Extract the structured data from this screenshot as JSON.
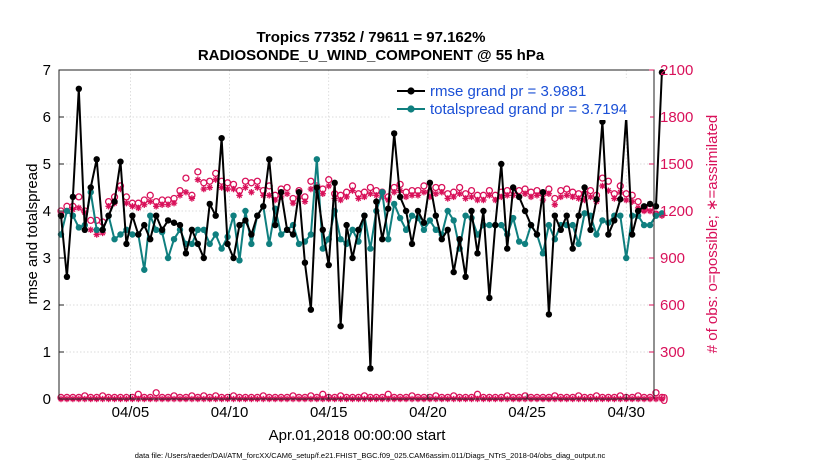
{
  "chart_data": {
    "type": "line",
    "title": "Tropics 77352 / 79611 = 97.162%",
    "subtitle": "RADIOSONDE_U_WIND_COMPONENT @ 55 hPa",
    "xlabel": "Apr.01,2018 00:00:00 start",
    "ylabel": "rmse and totalspread",
    "y2label": "# of obs: o=possible; ∗=assimilated",
    "ylim": [
      0,
      7
    ],
    "y2lim": [
      0,
      2100
    ],
    "xlim": [
      0.9,
      30.9
    ],
    "yticks": [
      "0",
      "1",
      "2",
      "3",
      "4",
      "5",
      "6",
      "7"
    ],
    "y2ticks": [
      "0",
      "300",
      "600",
      "900",
      "1200",
      "1500",
      "1800",
      "2100"
    ],
    "xticks": [
      {
        "x": 4.5,
        "label": "04/05"
      },
      {
        "x": 9.5,
        "label": "04/10"
      },
      {
        "x": 14.5,
        "label": "04/15"
      },
      {
        "x": 19.5,
        "label": "04/20"
      },
      {
        "x": 24.5,
        "label": "04/25"
      },
      {
        "x": 29.5,
        "label": "04/30"
      }
    ],
    "colors": {
      "rmse": "#000000",
      "spread": "#0f7f7f",
      "obs": "#d9115a",
      "legend_text": "#1a4fd6"
    },
    "legend": [
      "rmse grand pr = 3.9881",
      "totalspread grand pr = 3.7194"
    ],
    "series": [
      {
        "name": "rmse",
        "values": [
          3.9,
          2.6,
          4.3,
          6.6,
          3.6,
          4.5,
          5.1,
          3.6,
          3.9,
          4.2,
          5.05,
          3.3,
          3.9,
          3.5,
          3.7,
          3.4,
          3.9,
          3.6,
          3.8,
          3.75,
          3.7,
          3.1,
          3.6,
          3.3,
          3.0,
          4.15,
          3.9,
          5.55,
          3.3,
          3.0,
          3.7,
          3.8,
          3.5,
          3.9,
          4.1,
          5.1,
          3.7,
          4.4,
          3.6,
          3.5,
          4.4,
          2.9,
          1.9,
          4.5,
          3.6,
          2.85,
          4.6,
          1.55,
          3.7,
          3.0,
          3.6,
          3.9,
          0.65,
          4.2,
          3.4,
          4.05,
          5.65,
          4.3,
          4.0,
          3.3,
          4.0,
          3.75,
          4.6,
          3.9,
          3.4,
          3.6,
          2.7,
          3.4,
          2.6,
          4.0,
          3.1,
          4.0,
          2.15,
          3.7,
          5.0,
          3.2,
          4.5,
          4.3,
          4.0,
          3.7,
          3.5,
          4.4,
          1.8,
          3.9,
          3.6,
          3.9,
          3.2,
          3.9,
          4.5,
          3.6,
          4.25,
          5.9,
          3.5,
          3.8,
          4.25,
          6.0,
          3.5,
          4.0,
          4.1,
          4.15,
          4.1,
          6.95
        ]
      },
      {
        "name": "totalspread",
        "values": [
          3.5,
          4.0,
          3.9,
          3.65,
          3.7,
          4.4,
          3.6,
          3.6,
          3.9,
          3.4,
          3.5,
          3.6,
          3.5,
          3.5,
          2.75,
          3.9,
          3.6,
          3.55,
          3.0,
          3.4,
          3.6,
          3.3,
          3.3,
          3.6,
          3.6,
          3.3,
          3.5,
          3.2,
          3.45,
          3.9,
          2.95,
          4.0,
          3.3,
          3.9,
          4.1,
          3.3,
          4.05,
          3.5,
          3.6,
          3.7,
          3.3,
          3.35,
          3.5,
          5.1,
          3.2,
          3.4,
          4.0,
          3.4,
          3.3,
          3.6,
          3.35,
          3.9,
          3.2,
          4.0,
          4.4,
          3.4,
          4.15,
          3.85,
          3.6,
          3.9,
          3.85,
          3.6,
          3.8,
          3.6,
          3.5,
          4.0,
          3.8,
          3.2,
          3.9,
          3.85,
          3.5,
          3.7,
          3.7,
          3.7,
          3.7,
          3.5,
          3.85,
          3.35,
          3.3,
          3.7,
          3.5,
          3.1,
          3.7,
          3.4,
          3.7,
          3.7,
          3.7,
          3.3,
          3.95,
          3.9,
          3.5,
          3.8,
          3.75,
          3.9,
          3.9,
          3.0,
          3.9,
          3.9,
          3.7,
          3.7,
          3.9,
          3.95
        ]
      },
      {
        "name": "obs_possible",
        "values": [
          1200,
          1230,
          1230,
          1290,
          1200,
          1140,
          1140,
          1130,
          1260,
          1290,
          1360,
          1290,
          1250,
          1250,
          1270,
          1300,
          1260,
          1270,
          1270,
          1280,
          1330,
          1410,
          1300,
          1450,
          1380,
          1390,
          1440,
          1390,
          1380,
          1370,
          1330,
          1390,
          1380,
          1390,
          1330,
          1360,
          1300,
          1340,
          1350,
          1280,
          1330,
          1290,
          1390,
          1360,
          1340,
          1400,
          1310,
          1300,
          1320,
          1360,
          1310,
          1320,
          1350,
          1330,
          1320,
          1290,
          1350,
          1370,
          1320,
          1330,
          1330,
          1360,
          1320,
          1350,
          1350,
          1310,
          1320,
          1350,
          1310,
          1330,
          1300,
          1300,
          1330,
          1300,
          1320,
          1330,
          1330,
          1330,
          1340,
          1320,
          1330,
          1310,
          1340,
          1280,
          1330,
          1340,
          1320,
          1310,
          1310,
          1330,
          1300,
          1410,
          1390,
          1310,
          1360,
          1310,
          1300,
          1260,
          1210,
          1220,
          1180,
          1180
        ]
      },
      {
        "name": "obs_assimilated",
        "values": [
          1180,
          1200,
          1210,
          1220,
          1190,
          1080,
          1050,
          1060,
          1230,
          1250,
          1340,
          1250,
          1230,
          1220,
          1240,
          1260,
          1230,
          1240,
          1240,
          1250,
          1300,
          1320,
          1280,
          1400,
          1340,
          1350,
          1400,
          1350,
          1340,
          1340,
          1300,
          1350,
          1320,
          1350,
          1300,
          1300,
          1270,
          1290,
          1310,
          1250,
          1290,
          1260,
          1340,
          1330,
          1310,
          1360,
          1280,
          1270,
          1290,
          1330,
          1280,
          1290,
          1310,
          1300,
          1290,
          1270,
          1320,
          1330,
          1290,
          1300,
          1300,
          1320,
          1290,
          1310,
          1320,
          1280,
          1290,
          1310,
          1280,
          1290,
          1270,
          1270,
          1300,
          1270,
          1290,
          1300,
          1300,
          1290,
          1310,
          1290,
          1300,
          1270,
          1310,
          1240,
          1290,
          1300,
          1290,
          1280,
          1270,
          1290,
          1260,
          1360,
          1330,
          1280,
          1320,
          1270,
          1260,
          1220,
          1200,
          1200,
          1180,
          1170
        ]
      },
      {
        "name": "obs_rejected_possible",
        "values": [
          10,
          10,
          10,
          10,
          20,
          10,
          10,
          20,
          10,
          10,
          10,
          10,
          10,
          30,
          10,
          10,
          40,
          10,
          10,
          20,
          10,
          10,
          20,
          10,
          20,
          10,
          20,
          10,
          10,
          20,
          10,
          10,
          10,
          10,
          20,
          10,
          10,
          10,
          10,
          20,
          10,
          10,
          20,
          10,
          30,
          10,
          10,
          20,
          10,
          10,
          10,
          20,
          10,
          10,
          10,
          30,
          10,
          10,
          10,
          20,
          10,
          10,
          10,
          20,
          10,
          10,
          20,
          10,
          10,
          10,
          30,
          10,
          10,
          10,
          10,
          20,
          10,
          10,
          20,
          10,
          10,
          10,
          10,
          20,
          10,
          10,
          10,
          20,
          10,
          10,
          20,
          10,
          10,
          10,
          20,
          10,
          10,
          20,
          10,
          10,
          40,
          10
        ]
      },
      {
        "name": "obs_rejected_assimilated",
        "values": [
          0,
          0,
          0,
          0,
          0,
          0,
          0,
          0,
          0,
          0,
          0,
          0,
          0,
          0,
          0,
          0,
          0,
          0,
          0,
          0,
          0,
          0,
          0,
          0,
          0,
          0,
          0,
          0,
          0,
          0,
          0,
          0,
          0,
          0,
          0,
          0,
          0,
          0,
          0,
          0,
          0,
          0,
          0,
          0,
          0,
          0,
          0,
          0,
          0,
          0,
          0,
          0,
          0,
          0,
          0,
          0,
          0,
          0,
          0,
          0,
          0,
          0,
          0,
          0,
          0,
          0,
          0,
          0,
          0,
          0,
          0,
          0,
          0,
          0,
          0,
          0,
          0,
          0,
          0,
          0,
          0,
          0,
          0,
          0,
          0,
          0,
          0,
          0,
          0,
          0,
          0,
          0,
          0,
          0,
          0,
          0,
          0,
          0,
          0,
          0,
          0,
          0
        ]
      }
    ],
    "grid": true
  },
  "footer": "data file: /Users/raeder/DAI/ATM_forcXX/CAM6_setup/f.e21.FHIST_BGC.f09_025.CAM6assim.011/Diags_NTrS_2018-04/obs_diag_output.nc"
}
